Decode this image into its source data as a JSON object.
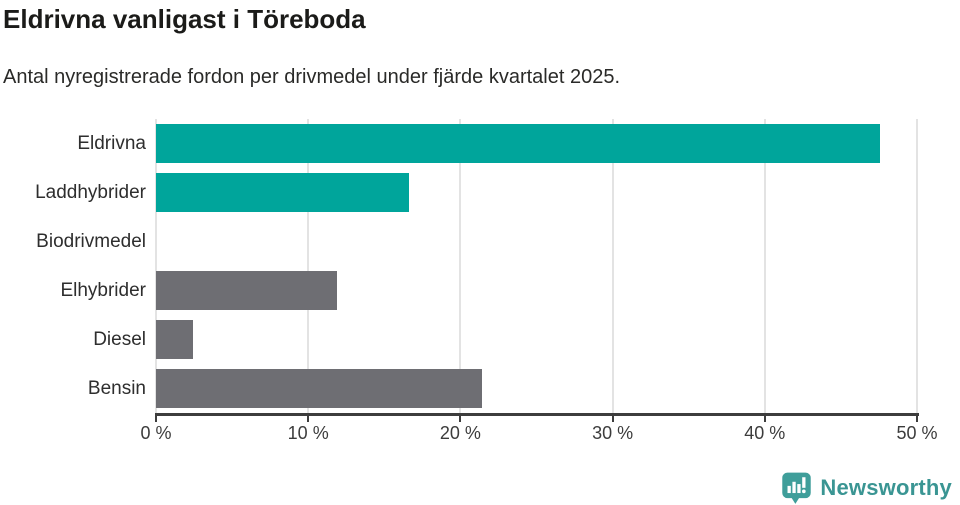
{
  "header": {
    "title": "Eldrivna vanligast i Töreboda",
    "subtitle": "Antal nyregistrerade fordon per drivmedel under fjärde kvartalet 2025."
  },
  "chart_data": {
    "type": "bar",
    "orientation": "horizontal",
    "title": "Eldrivna vanligast i Töreboda",
    "subtitle": "Antal nyregistrerade fordon per drivmedel under fjärde kvartalet 2025.",
    "categories": [
      "Eldrivna",
      "Laddhybrider",
      "Biodrivmedel",
      "Elhybrider",
      "Diesel",
      "Bensin"
    ],
    "values": [
      47.6,
      16.6,
      0,
      11.9,
      2.4,
      21.4
    ],
    "unit": "%",
    "xlim": [
      0,
      50
    ],
    "x_ticks": [
      0,
      10,
      20,
      30,
      40,
      50
    ],
    "x_tick_labels": [
      "0 %",
      "10 %",
      "20 %",
      "30 %",
      "40 %",
      "50 %"
    ],
    "bar_colors": [
      "#00a59b",
      "#00a59b",
      "#6e6e73",
      "#6e6e73",
      "#6e6e73",
      "#6e6e73"
    ],
    "highlight_color": "#00a59b",
    "default_color": "#6e6e73",
    "grid": true,
    "gridline_color": "#e3e3e3",
    "axis_color": "#3d3d3d",
    "ylabel": "",
    "xlabel": ""
  },
  "footer": {
    "brand": "Newsworthy",
    "logo_icon": "newsworthy-speech-bubble-bar-chart-icon",
    "brand_color": "#3a9593",
    "icon_color": "#3f9e9a"
  }
}
